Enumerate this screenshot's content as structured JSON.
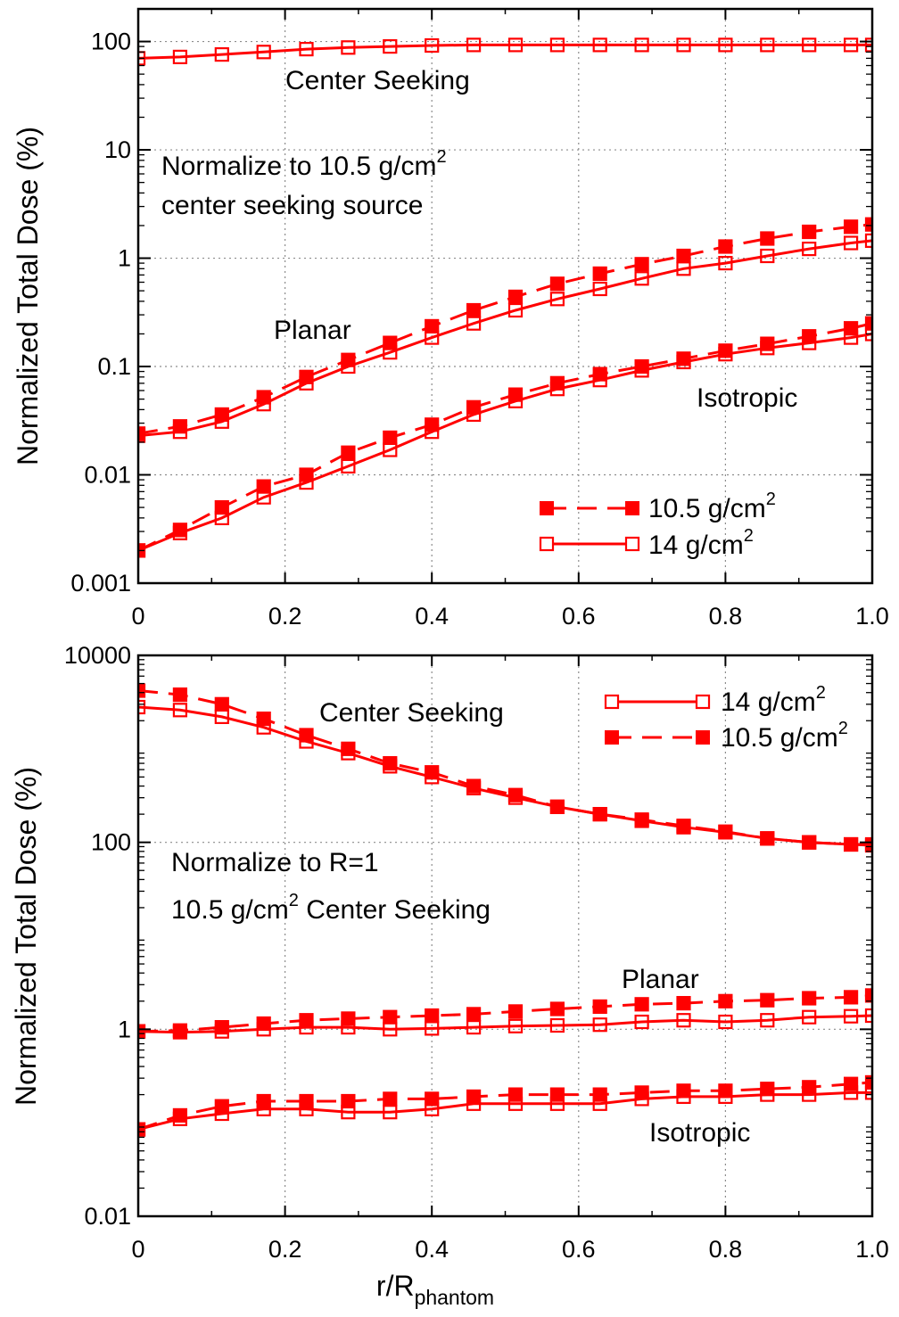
{
  "colors": {
    "series": "#ff0000",
    "grid": "#8c8c8c",
    "axis": "#000000"
  },
  "xlabel": {
    "main": "r/R",
    "sub": "phantom"
  },
  "chart_data": [
    {
      "type": "line",
      "yscale": "log",
      "ylim": [
        0.001,
        200
      ],
      "xlim": [
        0,
        1.0
      ],
      "grid": true,
      "ylabel": "Normalized Total Dose (%)",
      "x_ticks": [
        "0",
        "0.2",
        "0.4",
        "0.6",
        "0.8",
        "1.0"
      ],
      "y_ticks": [
        {
          "value": 0.001,
          "label": "0.001"
        },
        {
          "value": 0.01,
          "label": "0.01"
        },
        {
          "value": 0.1,
          "label": "0.1"
        },
        {
          "value": 1,
          "label": "1"
        },
        {
          "value": 10,
          "label": "10"
        },
        {
          "value": 100,
          "label": "100"
        }
      ],
      "note": {
        "line1": "Normalize to 10.5 g/cm",
        "line1_sup": "2",
        "line2": "center seeking source"
      },
      "labels": {
        "center": "Center Seeking",
        "planar": "Planar",
        "isotropic": "Isotropic"
      },
      "legend": {
        "placement": "bottom-right",
        "entries": [
          {
            "text": "10.5 g/cm",
            "sup": "2",
            "style": "dashed-filled"
          },
          {
            "text": "14 g/cm",
            "sup": "2",
            "style": "solid-open"
          }
        ]
      },
      "x": [
        0,
        0.057,
        0.114,
        0.171,
        0.229,
        0.286,
        0.343,
        0.4,
        0.457,
        0.514,
        0.571,
        0.629,
        0.686,
        0.743,
        0.8,
        0.857,
        0.914,
        0.971,
        1.0
      ],
      "series": [
        {
          "group": "center",
          "thickness": "14",
          "values": [
            70,
            72,
            76,
            80,
            85,
            88,
            90,
            92,
            93,
            93,
            93,
            93,
            93,
            93,
            93,
            93,
            93,
            93,
            93
          ]
        },
        {
          "group": "planar",
          "thickness": "10.5",
          "values": [
            0.024,
            0.028,
            0.036,
            0.052,
            0.08,
            0.115,
            0.165,
            0.235,
            0.33,
            0.44,
            0.58,
            0.72,
            0.88,
            1.05,
            1.28,
            1.52,
            1.75,
            1.95,
            2.05
          ]
        },
        {
          "group": "planar",
          "thickness": "14",
          "values": [
            0.023,
            0.025,
            0.031,
            0.045,
            0.07,
            0.1,
            0.135,
            0.185,
            0.25,
            0.33,
            0.42,
            0.52,
            0.65,
            0.8,
            0.9,
            1.05,
            1.22,
            1.38,
            1.45
          ]
        },
        {
          "group": "isotropic",
          "thickness": "10.5",
          "values": [
            0.002,
            0.0031,
            0.005,
            0.0078,
            0.01,
            0.016,
            0.022,
            0.029,
            0.042,
            0.055,
            0.07,
            0.085,
            0.1,
            0.118,
            0.14,
            0.162,
            0.19,
            0.225,
            0.25
          ]
        },
        {
          "group": "isotropic",
          "thickness": "14",
          "values": [
            0.002,
            0.0029,
            0.004,
            0.0062,
            0.0085,
            0.012,
            0.017,
            0.025,
            0.036,
            0.048,
            0.062,
            0.075,
            0.092,
            0.11,
            0.13,
            0.148,
            0.165,
            0.185,
            0.2
          ]
        }
      ]
    },
    {
      "type": "line",
      "yscale": "log",
      "ylim": [
        0.01,
        10000
      ],
      "xlim": [
        0,
        1.0
      ],
      "grid": true,
      "ylabel": "Normalized Total Dose (%)",
      "x_ticks": [
        "0",
        "0.2",
        "0.4",
        "0.6",
        "0.8",
        "1.0"
      ],
      "y_ticks": [
        {
          "value": 0.01,
          "label": "0.01"
        },
        {
          "value": 1,
          "label": "1"
        },
        {
          "value": 100,
          "label": "100"
        },
        {
          "value": 10000,
          "label": "10000"
        }
      ],
      "note": {
        "line1": "Normalize to R=1",
        "line2_pre": "10.5 g/cm",
        "line2_sup": "2",
        "line2_post": " Center Seeking"
      },
      "labels": {
        "center": "Center Seeking",
        "planar": "Planar",
        "isotropic": "Isotropic"
      },
      "legend": {
        "placement": "top-right",
        "entries": [
          {
            "text": "14 g/cm",
            "sup": "2",
            "style": "solid-open"
          },
          {
            "text": "10.5 g/cm",
            "sup": "2",
            "style": "dashed-filled"
          }
        ]
      },
      "x": [
        0,
        0.057,
        0.114,
        0.171,
        0.229,
        0.286,
        0.343,
        0.4,
        0.457,
        0.514,
        0.571,
        0.629,
        0.686,
        0.743,
        0.8,
        0.857,
        0.914,
        0.971,
        1.0
      ],
      "series": [
        {
          "group": "center",
          "thickness": "10.5",
          "values": [
            4200,
            3800,
            3000,
            2100,
            1400,
            1000,
            700,
            560,
            400,
            320,
            240,
            200,
            175,
            150,
            130,
            110,
            100,
            95,
            95
          ]
        },
        {
          "group": "center",
          "thickness": "14",
          "values": [
            2800,
            2600,
            2200,
            1700,
            1200,
            900,
            650,
            500,
            380,
            300,
            240,
            200,
            170,
            145,
            128,
            110,
            100,
            95,
            93
          ]
        },
        {
          "group": "planar",
          "thickness": "10.5",
          "values": [
            0.95,
            0.97,
            1.05,
            1.15,
            1.25,
            1.3,
            1.35,
            1.4,
            1.45,
            1.55,
            1.65,
            1.75,
            1.85,
            1.9,
            2.0,
            2.05,
            2.15,
            2.2,
            2.3
          ]
        },
        {
          "group": "planar",
          "thickness": "14",
          "values": [
            0.95,
            0.93,
            0.95,
            1.0,
            1.05,
            1.05,
            1.0,
            1.02,
            1.05,
            1.08,
            1.1,
            1.12,
            1.2,
            1.25,
            1.2,
            1.25,
            1.35,
            1.38,
            1.4
          ]
        },
        {
          "group": "isotropic",
          "thickness": "10.5",
          "values": [
            0.085,
            0.12,
            0.15,
            0.17,
            0.17,
            0.17,
            0.18,
            0.18,
            0.19,
            0.2,
            0.2,
            0.2,
            0.21,
            0.22,
            0.22,
            0.23,
            0.24,
            0.26,
            0.27
          ]
        },
        {
          "group": "isotropic",
          "thickness": "14",
          "values": [
            0.085,
            0.11,
            0.125,
            0.14,
            0.14,
            0.13,
            0.13,
            0.14,
            0.16,
            0.16,
            0.16,
            0.16,
            0.18,
            0.19,
            0.19,
            0.2,
            0.2,
            0.21,
            0.21
          ]
        }
      ]
    }
  ]
}
